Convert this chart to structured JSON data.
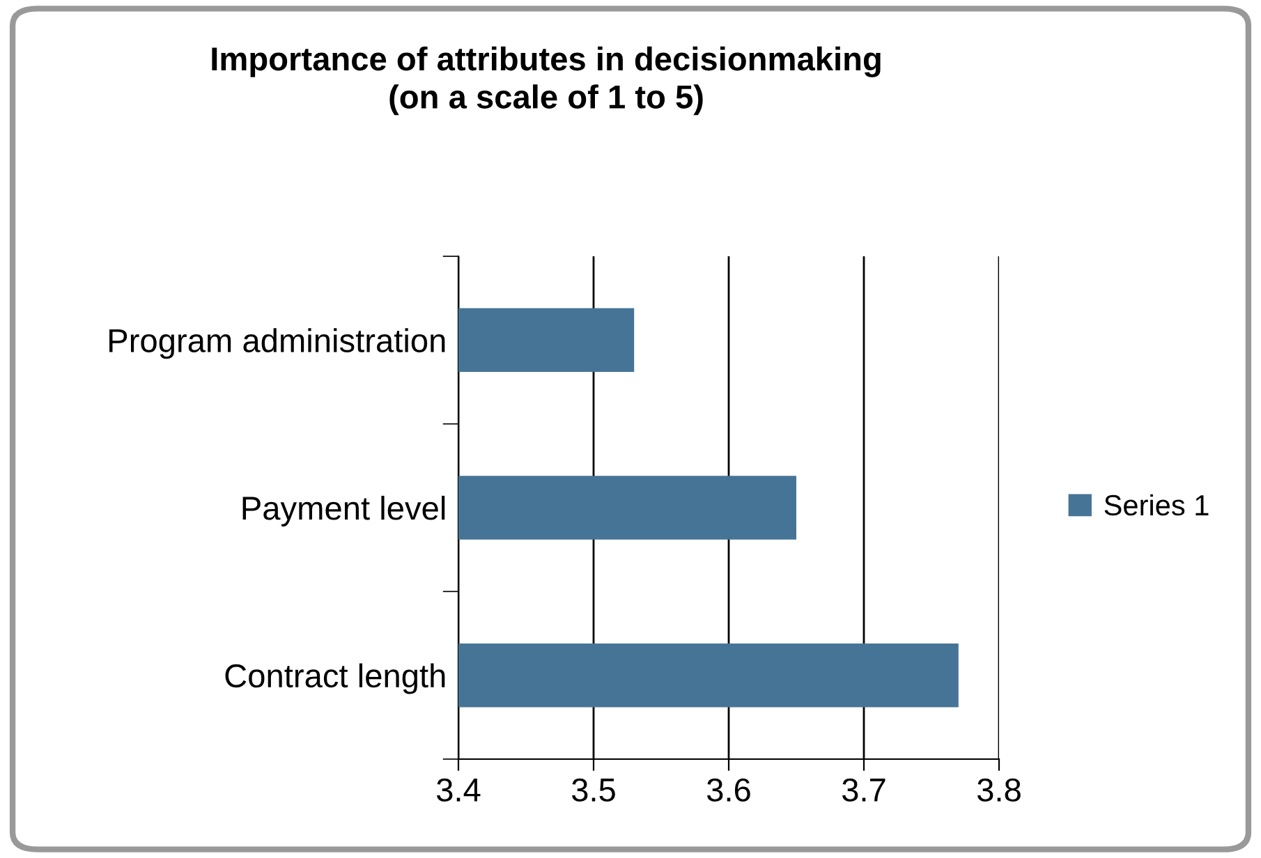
{
  "chart_data": {
    "type": "bar",
    "orientation": "horizontal",
    "title": "Importance of attributes in decisionmaking\n(on a scale of 1 to 5)",
    "categories": [
      "Program administration",
      "Payment level",
      "Contract length"
    ],
    "series": [
      {
        "name": "Series 1",
        "color": "#467496",
        "values": [
          3.53,
          3.65,
          3.77
        ]
      }
    ],
    "xlim": [
      3.4,
      3.8
    ],
    "xticks": [
      3.4,
      3.5,
      3.6,
      3.7,
      3.8
    ],
    "grid": "x",
    "legend": "right"
  }
}
